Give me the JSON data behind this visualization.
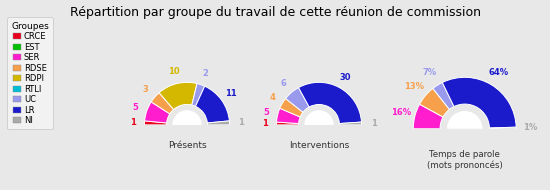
{
  "title": "Répartition par groupe du travail de cette réunion de commission",
  "groups": [
    "CRCE",
    "EST",
    "SER",
    "RDSE",
    "RDPI",
    "RTLI",
    "UC",
    "LR",
    "NI"
  ],
  "colors": [
    "#e8001c",
    "#00c000",
    "#ff1dce",
    "#f7a04b",
    "#d4b800",
    "#00bcd4",
    "#9999ee",
    "#1b1bcc",
    "#aaaaaa"
  ],
  "presents": [
    1,
    0,
    5,
    3,
    10,
    0,
    2,
    11,
    1
  ],
  "interventions": [
    1,
    0,
    5,
    4,
    0,
    0,
    6,
    30,
    1
  ],
  "temps_pct": [
    0,
    0,
    16,
    13,
    0,
    0,
    7,
    64,
    1
  ],
  "label_colors": [
    "#e8001c",
    "#00c000",
    "#ff1dce",
    "#f7a04b",
    "#d4b800",
    "#00bcd4",
    "#9999ee",
    "#1b1bcc",
    "#aaaaaa"
  ],
  "background_color": "#e8e8e8",
  "legend_bg": "#f5f5f5",
  "chart_labels": [
    "Présents",
    "Interventions",
    "Temps de parole\n(mots prononcés)"
  ]
}
